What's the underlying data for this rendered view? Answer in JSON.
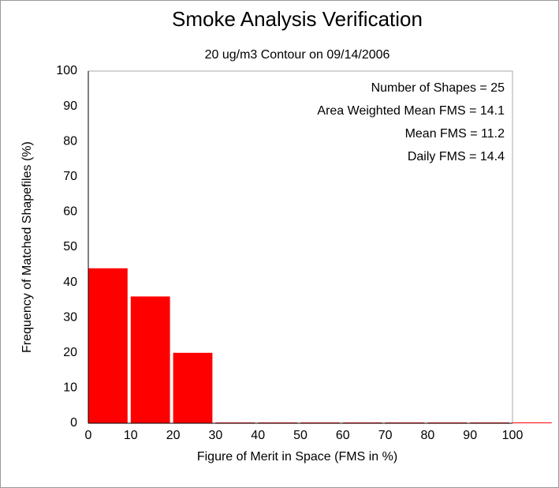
{
  "chart_data": {
    "type": "histogram",
    "title": "Smoke Analysis Verification",
    "subtitle": "20 ug/m3 Contour on 09/14/2006",
    "xlabel": "Figure of Merit in Space (FMS in %)",
    "ylabel": "Frequency of Matched Shapefiles (%)",
    "bins": [
      0,
      10,
      20,
      30,
      40,
      50,
      60,
      70,
      80,
      90,
      100,
      110
    ],
    "values": [
      44,
      36,
      20,
      0,
      0,
      0,
      0,
      0,
      0,
      0,
      0
    ],
    "color": "#ff0000",
    "xlim": [
      0,
      100
    ],
    "ylim": [
      0,
      100
    ],
    "xticks": [
      0,
      10,
      20,
      30,
      40,
      50,
      60,
      70,
      80,
      90,
      100
    ],
    "yticks": [
      0,
      10,
      20,
      30,
      40,
      50,
      60,
      70,
      80,
      90,
      100
    ],
    "annotations": [
      "Number of Shapes = 25",
      "Area Weighted Mean FMS = 14.1",
      "Mean FMS = 11.2",
      "Daily FMS = 14.4"
    ],
    "grid": false
  }
}
